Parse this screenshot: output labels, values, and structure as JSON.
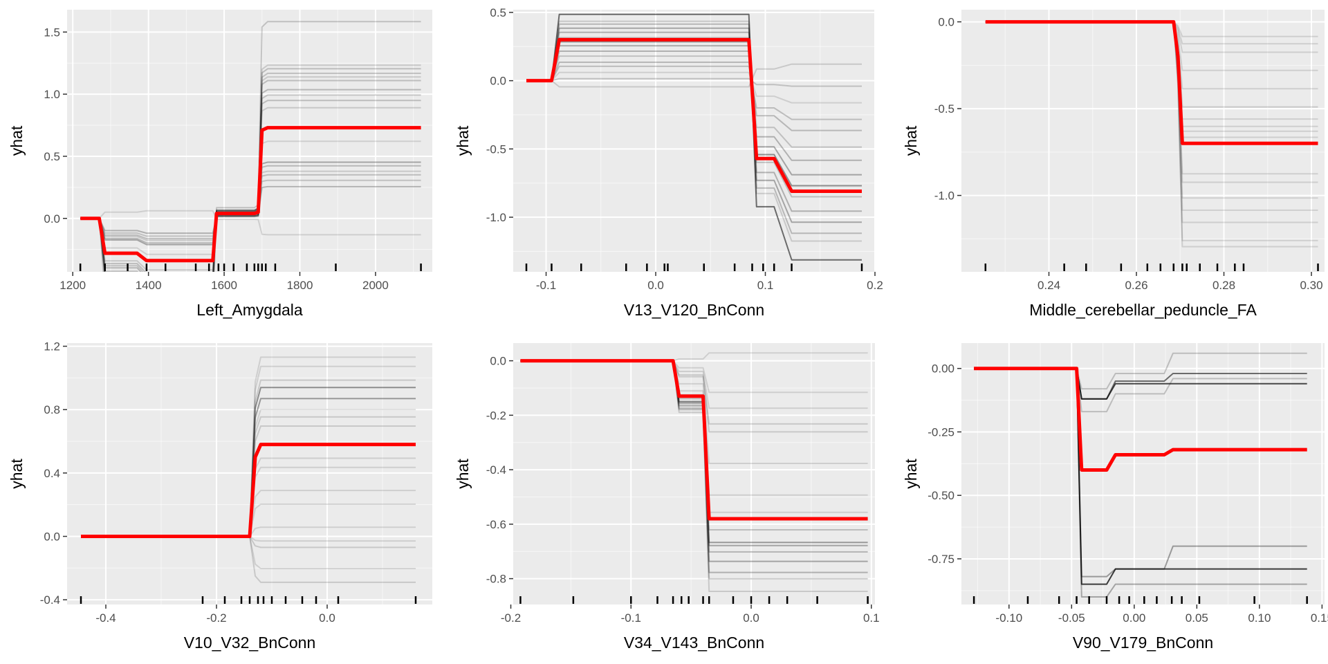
{
  "colors": {
    "panel_background": "#ebebeb",
    "grid_major": "#ffffff",
    "ice_line": "#000000",
    "pdp_line": "#ff0000",
    "rug": "#000000",
    "tick_text": "#4d4d4d"
  },
  "chart_data": [
    {
      "type": "line",
      "xlabel": "Left_Amygdala",
      "ylabel": "yhat",
      "xlim": [
        1185,
        2150
      ],
      "ylim": [
        -0.43,
        1.68
      ],
      "x_ticks": [
        1200,
        1400,
        1600,
        1800,
        2000
      ],
      "x_tick_labels": [
        "1200",
        "1400",
        "1600",
        "1800",
        "2000"
      ],
      "y_ticks": [
        0.0,
        0.5,
        1.0,
        1.5
      ],
      "y_tick_labels": [
        "0.0",
        "0.5",
        "1.0",
        "1.5"
      ],
      "grid": true,
      "pdp": {
        "x": [
          1220,
          1270,
          1285,
          1370,
          1395,
          1550,
          1570,
          1580,
          1660,
          1680,
          1690,
          1700,
          1715,
          2120
        ],
        "y": [
          0.0,
          0.0,
          -0.28,
          -0.28,
          -0.34,
          -0.34,
          -0.34,
          0.04,
          0.04,
          0.04,
          0.05,
          0.71,
          0.73,
          0.73
        ]
      },
      "ice": {
        "x": [
          1220,
          1270,
          1285,
          1370,
          1395,
          1550,
          1570,
          1580,
          1660,
          1680,
          1690,
          1700,
          1715,
          2120
        ],
        "pattern": [
          0,
          0,
          -0.28,
          -0.28,
          -0.34,
          -0.34,
          -0.34,
          0.04,
          0.04,
          0.04,
          0.05,
          0.71,
          0.73,
          0.73
        ],
        "lines": [
          {
            "dy": 0,
            "scale": -0.18,
            "alpha": 0.12
          },
          {
            "dy": 0,
            "scale": 0.35,
            "alpha": 0.25
          },
          {
            "dy": 0,
            "scale": 0.42,
            "alpha": 0.18
          },
          {
            "dy": 0,
            "scale": 0.48,
            "alpha": 0.2
          },
          {
            "dy": 0,
            "scale": 0.52,
            "alpha": 0.15
          },
          {
            "dy": 0,
            "scale": 0.58,
            "alpha": 0.22
          },
          {
            "dy": 0,
            "scale": 0.62,
            "alpha": 0.3
          },
          {
            "dy": 0,
            "scale": 0.85,
            "alpha": 0.12
          },
          {
            "dy": 0,
            "scale": 1.22,
            "alpha": 0.15
          },
          {
            "dy": 0,
            "scale": 1.3,
            "alpha": 0.2
          },
          {
            "dy": 0,
            "scale": 1.36,
            "alpha": 0.18
          },
          {
            "dy": 0,
            "scale": 1.42,
            "alpha": 0.22
          },
          {
            "dy": 0,
            "scale": 1.52,
            "alpha": 0.2
          },
          {
            "dy": 0,
            "scale": 1.56,
            "alpha": 0.15
          },
          {
            "dy": 0,
            "scale": 1.6,
            "alpha": 0.18
          },
          {
            "dy": 0,
            "scale": 1.65,
            "alpha": 0.2
          },
          {
            "dy": 0,
            "scale": 1.69,
            "alpha": 0.15
          },
          {
            "dy": 0,
            "scale": 2.17,
            "alpha": 0.18
          }
        ]
      },
      "rug": [
        1220,
        1285,
        1345,
        1395,
        1445,
        1525,
        1560,
        1585,
        1600,
        1625,
        1660,
        1680,
        1690,
        1700,
        1710,
        1735,
        1895,
        2120
      ]
    },
    {
      "type": "line",
      "xlabel": "V13_V120_BnConn",
      "ylabel": "yhat",
      "xlim": [
        -0.13,
        0.2
      ],
      "ylim": [
        -1.4,
        0.52
      ],
      "x_ticks": [
        -0.1,
        0.0,
        0.1,
        0.2
      ],
      "x_tick_labels": [
        "-0.1",
        "0.0",
        "0.1",
        "0.2"
      ],
      "y_ticks": [
        0.5,
        0.0,
        -0.5,
        -1.0
      ],
      "y_tick_labels": [
        "0.5",
        "0.0",
        "-0.5",
        "-1.0"
      ],
      "grid": true,
      "pdp": {
        "x": [
          -0.118,
          -0.095,
          -0.088,
          0.072,
          0.085,
          0.092,
          0.108,
          0.124,
          0.188
        ],
        "y": [
          0.0,
          0.0,
          0.3,
          0.3,
          0.3,
          -0.57,
          -0.57,
          -0.81,
          -0.81
        ]
      },
      "ice": {
        "x": [
          -0.118,
          -0.095,
          -0.088,
          0.072,
          0.085,
          0.092,
          0.108,
          0.124,
          0.188
        ],
        "pattern": [
          0,
          0,
          0.3,
          0.3,
          0.3,
          -0.57,
          -0.57,
          -0.81,
          -0.81
        ],
        "lines": [
          {
            "dy": 0,
            "scale": -0.15,
            "alpha": 0.15
          },
          {
            "dy": 0,
            "scale": 0.05,
            "alpha": 0.18
          },
          {
            "dy": 0,
            "scale": 0.2,
            "alpha": 0.12
          },
          {
            "dy": 0,
            "scale": 0.35,
            "alpha": 0.2
          },
          {
            "dy": 0,
            "scale": 0.45,
            "alpha": 0.22
          },
          {
            "dy": 0,
            "scale": 0.6,
            "alpha": 0.18
          },
          {
            "dy": 0,
            "scale": 0.72,
            "alpha": 0.25
          },
          {
            "dy": 0,
            "scale": 0.85,
            "alpha": 0.3
          },
          {
            "dy": 0,
            "scale": 0.95,
            "alpha": 0.4
          },
          {
            "dy": 0,
            "scale": 1.05,
            "alpha": 0.2
          },
          {
            "dy": 0,
            "scale": 1.18,
            "alpha": 0.25
          },
          {
            "dy": 0,
            "scale": 1.28,
            "alpha": 0.3
          },
          {
            "dy": 0,
            "scale": 1.38,
            "alpha": 0.22
          },
          {
            "dy": 0,
            "scale": 1.45,
            "alpha": 0.15
          },
          {
            "dy": 0,
            "scale": 1.62,
            "alpha": 0.55
          }
        ]
      },
      "rug": [
        -0.118,
        -0.095,
        -0.068,
        -0.027,
        -0.008,
        0.008,
        0.011,
        0.044,
        0.072,
        0.088,
        0.098,
        0.108,
        0.124,
        0.188
      ]
    },
    {
      "type": "line",
      "xlabel": "Middle_cerebellar_peduncle_FA",
      "ylabel": "yhat",
      "xlim": [
        0.22,
        0.303
      ],
      "ylim": [
        -1.44,
        0.07
      ],
      "x_ticks": [
        0.24,
        0.26,
        0.28,
        0.3
      ],
      "x_tick_labels": [
        "0.24",
        "0.26",
        "0.28",
        "0.30"
      ],
      "y_ticks": [
        0.0,
        -0.5,
        -1.0
      ],
      "y_tick_labels": [
        "0.0",
        "-0.5",
        "-1.0"
      ],
      "grid": true,
      "pdp": {
        "x": [
          0.2255,
          0.2685,
          0.2695,
          0.2705,
          0.3015
        ],
        "y": [
          0.0,
          0.0,
          -0.2,
          -0.7,
          -0.7
        ]
      },
      "ice": {
        "x": [
          0.2255,
          0.2685,
          0.2695,
          0.2705,
          0.3015
        ],
        "pattern": [
          0,
          0,
          -0.2,
          -0.7,
          -0.7
        ],
        "lines": [
          {
            "dy": 0,
            "scale": 0.12,
            "alpha": 0.12
          },
          {
            "dy": 0,
            "scale": 0.18,
            "alpha": 0.12
          },
          {
            "dy": 0,
            "scale": 0.25,
            "alpha": 0.12
          },
          {
            "dy": 0,
            "scale": 0.4,
            "alpha": 0.12
          },
          {
            "dy": 0,
            "scale": 0.55,
            "alpha": 0.12
          },
          {
            "dy": 0,
            "scale": 0.7,
            "alpha": 0.15
          },
          {
            "dy": 0,
            "scale": 0.8,
            "alpha": 0.12
          },
          {
            "dy": 0,
            "scale": 0.86,
            "alpha": 0.12
          },
          {
            "dy": 0,
            "scale": 0.9,
            "alpha": 0.12
          },
          {
            "dy": 0,
            "scale": 0.95,
            "alpha": 0.12
          },
          {
            "dy": 0,
            "scale": 1.25,
            "alpha": 0.12
          },
          {
            "dy": 0,
            "scale": 1.32,
            "alpha": 0.12
          },
          {
            "dy": 0,
            "scale": 1.45,
            "alpha": 0.12
          },
          {
            "dy": 0,
            "scale": 1.55,
            "alpha": 0.12
          },
          {
            "dy": 0,
            "scale": 1.65,
            "alpha": 0.12
          },
          {
            "dy": 0,
            "scale": 1.8,
            "alpha": 0.12
          },
          {
            "dy": 0,
            "scale": 1.85,
            "alpha": 0.12
          }
        ]
      },
      "rug": [
        0.2255,
        0.2435,
        0.2485,
        0.2565,
        0.2625,
        0.2655,
        0.2685,
        0.2705,
        0.2715,
        0.2745,
        0.2785,
        0.2825,
        0.2845,
        0.3015
      ]
    },
    {
      "type": "line",
      "xlabel": "V10_V32_BnConn",
      "ylabel": "yhat",
      "xlim": [
        -0.47,
        0.19
      ],
      "ylim": [
        -0.43,
        1.22
      ],
      "x_ticks": [
        -0.4,
        -0.2,
        0.0
      ],
      "x_tick_labels": [
        "-0.4",
        "-0.2",
        "0.0"
      ],
      "y_ticks": [
        1.2,
        0.8,
        0.4,
        0.0,
        -0.4
      ],
      "y_tick_labels": [
        "1.2",
        "0.8",
        "0.4",
        "0.0",
        "-0.4"
      ],
      "grid": true,
      "pdp": {
        "x": [
          -0.445,
          -0.14,
          -0.13,
          -0.12,
          0.16
        ],
        "y": [
          0.0,
          0.0,
          0.5,
          0.58,
          0.58
        ]
      },
      "ice": {
        "x": [
          -0.445,
          -0.14,
          -0.13,
          -0.12,
          0.16
        ],
        "pattern": [
          0,
          0,
          0.5,
          0.58,
          0.58
        ],
        "lines": [
          {
            "dy": 0,
            "scale": -0.5,
            "alpha": 0.15
          },
          {
            "dy": 0,
            "scale": -0.35,
            "alpha": 0.12
          },
          {
            "dy": 0,
            "scale": -0.12,
            "alpha": 0.15
          },
          {
            "dy": 0,
            "scale": -0.05,
            "alpha": 0.12
          },
          {
            "dy": 0,
            "scale": 0.1,
            "alpha": 0.12
          },
          {
            "dy": 0,
            "scale": 0.35,
            "alpha": 0.12
          },
          {
            "dy": 0,
            "scale": 0.5,
            "alpha": 0.12
          },
          {
            "dy": 0,
            "scale": 0.75,
            "alpha": 0.12
          },
          {
            "dy": 0,
            "scale": 0.85,
            "alpha": 0.12
          },
          {
            "dy": 0,
            "scale": 1.2,
            "alpha": 0.15
          },
          {
            "dy": 0,
            "scale": 1.3,
            "alpha": 0.15
          },
          {
            "dy": 0,
            "scale": 1.38,
            "alpha": 0.12
          },
          {
            "dy": 0,
            "scale": 1.5,
            "alpha": 0.35
          },
          {
            "dy": 0,
            "scale": 1.62,
            "alpha": 0.4
          },
          {
            "dy": 0,
            "scale": 1.7,
            "alpha": 0.15
          },
          {
            "dy": 0,
            "scale": 1.85,
            "alpha": 0.12
          },
          {
            "dy": 0,
            "scale": 1.95,
            "alpha": 0.12
          }
        ]
      },
      "rug": [
        -0.445,
        -0.225,
        -0.185,
        -0.155,
        -0.14,
        -0.125,
        -0.115,
        -0.1,
        -0.075,
        -0.045,
        -0.02,
        0.02,
        0.16
      ]
    },
    {
      "type": "line",
      "xlabel": "V34_V143_BnConn",
      "ylabel": "yhat",
      "xlim": [
        -0.198,
        0.103
      ],
      "ylim": [
        -0.895,
        0.065
      ],
      "x_ticks": [
        -0.2,
        -0.1,
        0.0,
        0.1
      ],
      "x_tick_labels": [
        "-0.2",
        "-0.1",
        "0.0",
        "0.1"
      ],
      "y_ticks": [
        0.0,
        -0.2,
        -0.4,
        -0.6,
        -0.8
      ],
      "y_tick_labels": [
        "0.0",
        "-0.2",
        "-0.4",
        "-0.6",
        "-0.8"
      ],
      "grid": true,
      "pdp": {
        "x": [
          -0.192,
          -0.065,
          -0.06,
          -0.045,
          -0.04,
          -0.035,
          0.097
        ],
        "y": [
          0.0,
          0.0,
          -0.13,
          -0.13,
          -0.13,
          -0.58,
          -0.58
        ]
      },
      "ice": {
        "x": [
          -0.192,
          -0.065,
          -0.06,
          -0.045,
          -0.04,
          -0.035,
          0.097
        ],
        "pattern": [
          0,
          0,
          -0.13,
          -0.13,
          -0.13,
          -0.58,
          -0.58
        ],
        "lines": [
          {
            "dy": 0,
            "scale": -0.05,
            "alpha": 0.12
          },
          {
            "dy": 0,
            "scale": 0.2,
            "alpha": 0.12
          },
          {
            "dy": 0,
            "scale": 0.3,
            "alpha": 0.12
          },
          {
            "dy": 0,
            "scale": 0.4,
            "alpha": 0.15
          },
          {
            "dy": 0,
            "scale": 0.45,
            "alpha": 0.15
          },
          {
            "dy": 0,
            "scale": 0.65,
            "alpha": 0.12
          },
          {
            "dy": 0,
            "scale": 0.85,
            "alpha": 0.12
          },
          {
            "dy": 0,
            "scale": 0.96,
            "alpha": 0.12
          },
          {
            "dy": 0,
            "scale": 1.07,
            "alpha": 0.2
          },
          {
            "dy": 0,
            "scale": 1.15,
            "alpha": 0.35
          },
          {
            "dy": 0,
            "scale": 1.17,
            "alpha": 0.3
          },
          {
            "dy": 0,
            "scale": 1.21,
            "alpha": 0.25
          },
          {
            "dy": 0,
            "scale": 1.27,
            "alpha": 0.3
          },
          {
            "dy": 0,
            "scale": 1.34,
            "alpha": 0.25
          },
          {
            "dy": 0,
            "scale": 1.38,
            "alpha": 0.2
          },
          {
            "dy": 0,
            "scale": 1.46,
            "alpha": 0.15
          }
        ]
      },
      "rug": [
        -0.192,
        -0.148,
        -0.1,
        -0.078,
        -0.065,
        -0.058,
        -0.052,
        -0.04,
        -0.035,
        -0.015,
        0.0,
        0.015,
        0.03,
        0.055,
        0.097
      ]
    },
    {
      "type": "line",
      "xlabel": "V90_V179_BnConn",
      "ylabel": "yhat",
      "xlim": [
        -0.138,
        0.152
      ],
      "ylim": [
        -0.93,
        0.1
      ],
      "x_ticks": [
        -0.1,
        -0.05,
        0.0,
        0.05,
        0.1,
        0.15
      ],
      "x_tick_labels": [
        "-0.10",
        "-0.05",
        "0.00",
        "0.05",
        "0.10",
        "0.15"
      ],
      "y_ticks": [
        0.0,
        -0.25,
        -0.5,
        -0.75
      ],
      "y_tick_labels": [
        "0.00",
        "-0.25",
        "-0.50",
        "-0.75"
      ],
      "grid": true,
      "pdp": {
        "x": [
          -0.128,
          -0.046,
          -0.042,
          -0.022,
          -0.015,
          0.024,
          0.031,
          0.138
        ],
        "y": [
          0.0,
          0.0,
          -0.4,
          -0.4,
          -0.34,
          -0.34,
          -0.32,
          -0.32
        ]
      },
      "ice": {
        "x": [
          -0.128,
          -0.046,
          -0.042,
          -0.022,
          -0.015,
          0.024,
          0.031,
          0.138
        ],
        "lines": [
          {
            "y": [
              0,
              0,
              -0.08,
              -0.08,
              -0.02,
              -0.02,
              0.06,
              0.06
            ],
            "alpha": 0.2
          },
          {
            "y": [
              0,
              0,
              -0.12,
              -0.12,
              -0.05,
              -0.05,
              -0.02,
              -0.02
            ],
            "alpha": 0.55
          },
          {
            "y": [
              0,
              0,
              -0.12,
              -0.12,
              -0.06,
              -0.06,
              -0.06,
              -0.06
            ],
            "alpha": 0.7
          },
          {
            "y": [
              0,
              0,
              -0.17,
              -0.17,
              -0.1,
              -0.1,
              -0.04,
              -0.04
            ],
            "alpha": 0.2
          },
          {
            "y": [
              0,
              0,
              -0.85,
              -0.85,
              -0.79,
              -0.79,
              -0.79,
              -0.79
            ],
            "alpha": 0.75
          },
          {
            "y": [
              0,
              0,
              -0.82,
              -0.82,
              -0.79,
              -0.79,
              -0.7,
              -0.7
            ],
            "alpha": 0.35
          },
          {
            "y": [
              0,
              0,
              -0.9,
              -0.9,
              -0.85,
              -0.85,
              -0.85,
              -0.85
            ],
            "alpha": 0.3
          }
        ]
      },
      "rug": [
        -0.128,
        -0.085,
        -0.06,
        -0.046,
        -0.036,
        -0.022,
        -0.012,
        -0.004,
        0.008,
        0.018,
        0.03,
        0.038,
        0.052,
        0.096,
        0.138
      ]
    }
  ]
}
